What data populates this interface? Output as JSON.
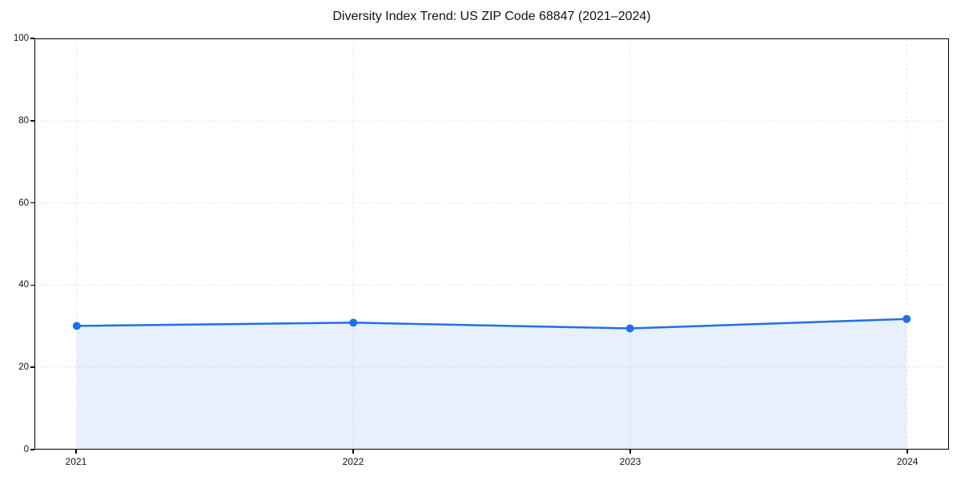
{
  "chart_data": {
    "type": "area",
    "title": "Diversity Index Trend: US ZIP Code 68847 (2021–2024)",
    "series_name": "Diversity Index",
    "x": [
      2021,
      2022,
      2023,
      2024
    ],
    "values": [
      30.0,
      30.8,
      29.4,
      31.7
    ],
    "xticks": [
      2021,
      2022,
      2023,
      2024
    ],
    "xtick_labels": [
      "2021",
      "2022",
      "2023",
      "2024"
    ],
    "yticks": [
      0,
      20,
      40,
      60,
      80,
      100
    ],
    "ytick_labels": [
      "0",
      "20",
      "40",
      "60",
      "80",
      "100"
    ],
    "xlim": [
      2020.85,
      2024.15
    ],
    "ylim": [
      0,
      100
    ],
    "xlabel": "",
    "ylabel": "",
    "grid": true,
    "grid_style": "dashed",
    "legend_position": "none",
    "line_color": "#1f6fe8",
    "marker_color": "#1f6fe8",
    "fill_color": "rgba(31,111,232,0.10)",
    "grid_color": "#e4e4e4",
    "spine_color": "#000000",
    "text_color": "#111111",
    "background_color": "#ffffff"
  }
}
